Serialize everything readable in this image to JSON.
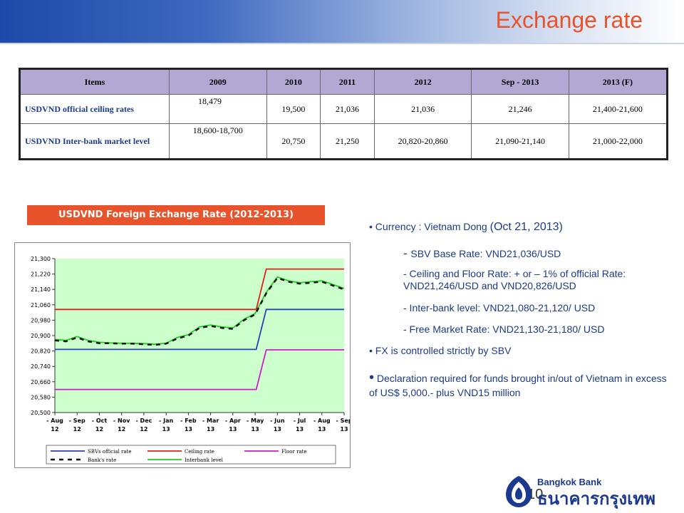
{
  "title": "Exchange rate",
  "table": {
    "headers": [
      "Items",
      "2009",
      "2010",
      "2011",
      "2012",
      "Sep - 2013",
      "2013 (F)"
    ],
    "rows": [
      {
        "label": "USDVND official ceiling rates",
        "values": [
          "18,479",
          "19,500",
          "21,036",
          "21,036",
          "21,246",
          "21,400-21,600"
        ]
      },
      {
        "label": "USDVND Inter-bank market level",
        "values": [
          "18,600-18,700",
          "20,750",
          "21,250",
          "20,820-20,860",
          "21,090-21,140",
          "21,000-22,000"
        ]
      }
    ]
  },
  "chart_title": "USDVND Foreign Exchange Rate (2012-2013)",
  "chart_data": {
    "type": "line",
    "categories": [
      "-Aug-12",
      "-Sep-12",
      "-Oct-12",
      "-Nov-12",
      "-Dec-12",
      "-Jan-13",
      "-Feb-13",
      "-Mar-13",
      "-Apr-13",
      "-May-13",
      "-Jun-13",
      "-Jul-13",
      "-Aug-13",
      "-Sep-13"
    ],
    "x_labels_top": [
      "- Aug",
      "- Sep",
      "- Oct",
      "- Nov",
      "- Dec",
      "- Jan",
      "- Feb",
      "- Mar",
      "- Apr",
      "- May",
      "- Jun",
      "- Jul",
      "- Aug",
      "- Sep"
    ],
    "x_labels_bottom": [
      "12",
      "12",
      "12",
      "12",
      "12",
      "13",
      "13",
      "13",
      "13",
      "13",
      "13",
      "13",
      "13",
      "13"
    ],
    "y_ticks": [
      "21,300",
      "21,220",
      "21,140",
      "21,060",
      "20,980",
      "20,900",
      "20,820",
      "20,740",
      "20,660",
      "20,580",
      "20,500"
    ],
    "ylim": [
      20500,
      21300
    ],
    "grid": false,
    "legend_position": "bottom",
    "series": [
      {
        "name": "SBVs official rate",
        "color": "#2b3fb6",
        "dash": "",
        "x": [
          0,
          9.05,
          9.5,
          13
        ],
        "y": [
          20828,
          20828,
          21036,
          21036
        ]
      },
      {
        "name": "Ceiling rate",
        "color": "#e02020",
        "dash": "",
        "x": [
          0,
          9.05,
          9.5,
          13
        ],
        "y": [
          21036,
          21036,
          21246,
          21246
        ]
      },
      {
        "name": "Floor rate",
        "color": "#d01ad0",
        "dash": "",
        "x": [
          0,
          9.05,
          9.5,
          13
        ],
        "y": [
          20620,
          20620,
          20826,
          20826
        ]
      },
      {
        "name": "Bank's rate",
        "color": "#111111",
        "dash": "6,6",
        "x": [
          0,
          0.5,
          1,
          1.5,
          2,
          2.5,
          3,
          3.5,
          4,
          4.5,
          5,
          5.5,
          6,
          6.5,
          7,
          7.5,
          8,
          8.5,
          9,
          9.5,
          10,
          10.5,
          11,
          11.5,
          12,
          12.5,
          13
        ],
        "y": [
          20875,
          20870,
          20890,
          20870,
          20860,
          20860,
          20858,
          20858,
          20855,
          20852,
          20858,
          20885,
          20900,
          20940,
          20950,
          20940,
          20935,
          20980,
          21010,
          21120,
          21200,
          21180,
          21170,
          21175,
          21180,
          21160,
          21140
        ]
      },
      {
        "name": "Interbank level",
        "color": "#22cc22",
        "dash": "",
        "x": [
          0,
          0.5,
          1,
          1.5,
          2,
          2.5,
          3,
          3.5,
          4,
          4.5,
          5,
          5.5,
          6,
          6.5,
          7,
          7.5,
          8,
          8.5,
          9,
          9.5,
          10,
          10.5,
          11,
          11.5,
          12,
          12.5,
          13
        ],
        "y": [
          20880,
          20875,
          20895,
          20875,
          20865,
          20862,
          20860,
          20860,
          20858,
          20855,
          20860,
          20890,
          20905,
          20945,
          20955,
          20945,
          20940,
          20985,
          21015,
          21125,
          21205,
          21185,
          21175,
          21180,
          21185,
          21165,
          21145
        ]
      }
    ]
  },
  "bullets": {
    "b1_prefix": "• Currency : Vietnam Dong ",
    "b1_date": "(Oct 21, 2013)",
    "s1_dash": "- ",
    "s1_text": "SBV Base Rate: VND21,036/USD",
    "s2": "- Ceiling and Floor Rate: + or – 1% of official Rate: VND21,246/USD and VND20,826/USD",
    "s3": "- Inter-bank level: VND21,080-21,120/ USD",
    "s4": "- Free Market Rate: VND21,130-21,180/ USD",
    "b2": "• FX is controlled strictly by SBV",
    "b3_dot": "•",
    "b3_text": " Declaration required for funds brought in/out of Vietnam in excess of US$ 5,000.- plus VND15 million"
  },
  "page_number": "10",
  "logo": {
    "english": "Bangkok Bank",
    "thai": "ธนาคารกรุงเทพ",
    "color": "#1b3a8f"
  }
}
